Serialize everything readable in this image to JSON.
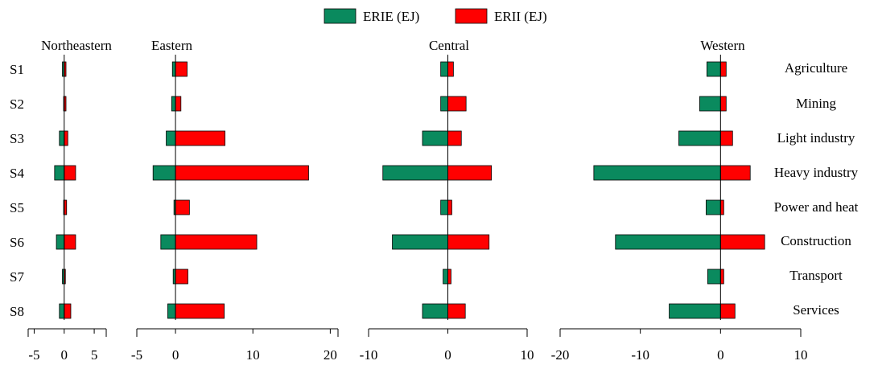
{
  "legend": {
    "placement": "top-center",
    "items": [
      {
        "label": "ERIE (EJ)",
        "color": "#0a8a5e"
      },
      {
        "label": "ERII (EJ)",
        "color": "#ff0000"
      }
    ]
  },
  "row_labels": [
    "S1",
    "S2",
    "S3",
    "S4",
    "S5",
    "S6",
    "S7",
    "S8"
  ],
  "sector_labels": [
    "Agriculture",
    "Mining",
    "Light industry",
    "Heavy industry",
    "Power and heat",
    "Construction",
    "Transport",
    "Services"
  ],
  "colors": {
    "erie": "#0a8a5e",
    "erii": "#ff0000",
    "axis": "#000000"
  },
  "chart_data": [
    {
      "type": "bar",
      "orientation": "horizontal-diverging",
      "title": "Northeastern",
      "categories": [
        "S1",
        "S2",
        "S3",
        "S4",
        "S5",
        "S6",
        "S7",
        "S8"
      ],
      "xlim": [
        -6,
        7
      ],
      "ticks": [
        -5,
        0,
        5
      ],
      "series": [
        {
          "name": "ERIE (EJ)",
          "values": [
            -0.3,
            -0.1,
            -0.8,
            -1.6,
            -0.1,
            -1.3,
            -0.3,
            -0.8
          ]
        },
        {
          "name": "ERII (EJ)",
          "values": [
            0.3,
            0.3,
            0.6,
            1.9,
            0.4,
            1.9,
            0.2,
            1.1
          ]
        }
      ]
    },
    {
      "type": "bar",
      "orientation": "horizontal-diverging",
      "title": "Eastern",
      "categories": [
        "S1",
        "S2",
        "S3",
        "S4",
        "S5",
        "S6",
        "S7",
        "S8"
      ],
      "xlim": [
        -5,
        21
      ],
      "ticks": [
        -5,
        0,
        10,
        20
      ],
      "series": [
        {
          "name": "ERIE (EJ)",
          "values": [
            -0.4,
            -0.5,
            -1.2,
            -2.9,
            -0.2,
            -1.9,
            -0.3,
            -1.0
          ]
        },
        {
          "name": "ERII (EJ)",
          "values": [
            1.5,
            0.7,
            6.4,
            17.2,
            1.8,
            10.5,
            1.6,
            6.3
          ]
        }
      ]
    },
    {
      "type": "bar",
      "orientation": "horizontal-diverging",
      "title": "Central",
      "categories": [
        "S1",
        "S2",
        "S3",
        "S4",
        "S5",
        "S6",
        "S7",
        "S8"
      ],
      "xlim": [
        -10,
        10
      ],
      "ticks": [
        -10,
        0,
        10
      ],
      "series": [
        {
          "name": "ERIE (EJ)",
          "values": [
            -0.9,
            -0.9,
            -3.2,
            -8.2,
            -0.9,
            -7.0,
            -0.6,
            -3.2
          ]
        },
        {
          "name": "ERII (EJ)",
          "values": [
            0.7,
            2.3,
            1.7,
            5.5,
            0.5,
            5.2,
            0.4,
            2.2
          ]
        }
      ]
    },
    {
      "type": "bar",
      "orientation": "horizontal-diverging",
      "title": "Western",
      "categories": [
        "S1",
        "S2",
        "S3",
        "S4",
        "S5",
        "S6",
        "S7",
        "S8"
      ],
      "xlim": [
        -20,
        10
      ],
      "ticks": [
        -20,
        -10,
        0,
        10
      ],
      "series": [
        {
          "name": "ERIE (EJ)",
          "values": [
            -1.7,
            -2.6,
            -5.2,
            -15.8,
            -1.8,
            -13.1,
            -1.6,
            -6.4
          ]
        },
        {
          "name": "ERII (EJ)",
          "values": [
            0.7,
            0.7,
            1.5,
            3.7,
            0.4,
            5.5,
            0.4,
            1.8
          ]
        }
      ]
    }
  ]
}
